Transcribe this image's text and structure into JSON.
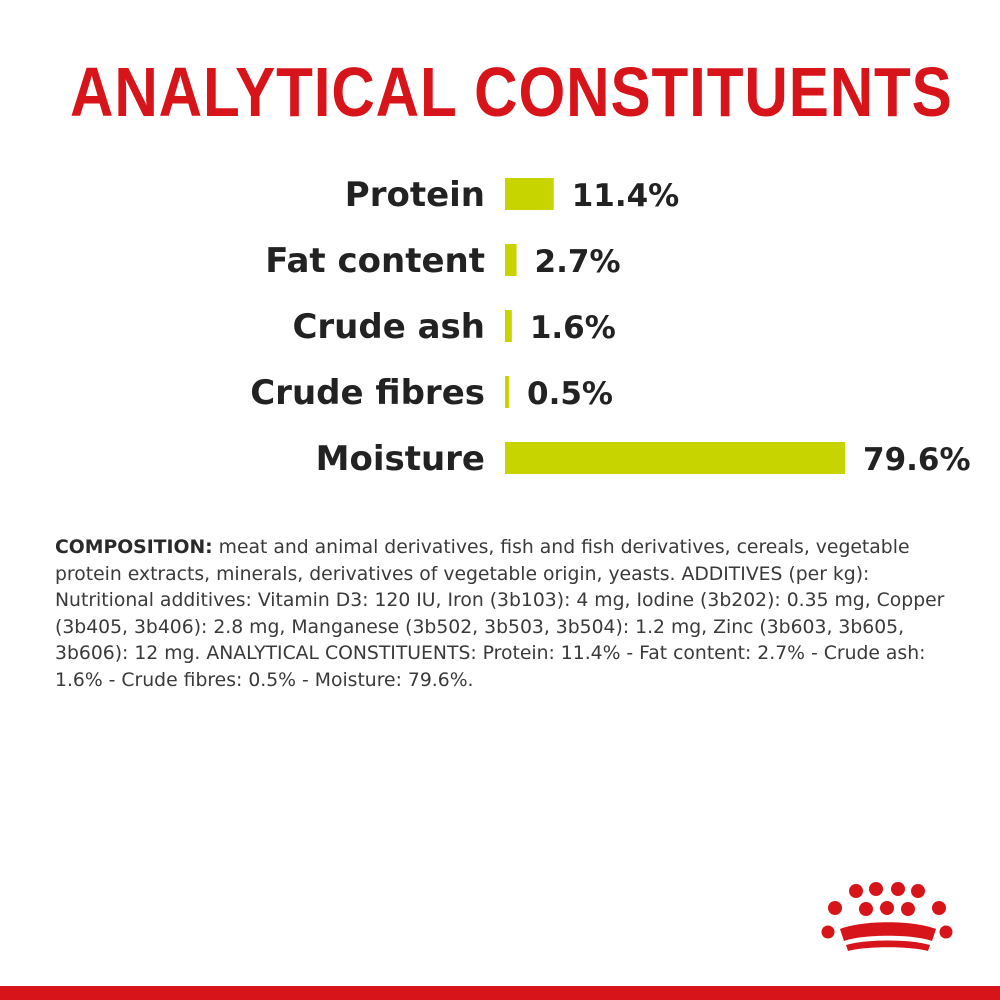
{
  "title": "ANALYTICAL CONSTITUENTS",
  "chart_data": {
    "type": "bar",
    "orientation": "horizontal",
    "categories": [
      "Protein",
      "Fat content",
      "Crude ash",
      "Crude fibres",
      "Moisture"
    ],
    "values": [
      11.4,
      2.7,
      1.6,
      0.5,
      79.6
    ],
    "value_labels": [
      "11.4%",
      "2.7%",
      "1.6%",
      "0.5%",
      "79.6%"
    ],
    "unit": "%",
    "xlim": [
      0,
      79.6
    ],
    "grid": false,
    "bar_color": "#c8d400",
    "label_color": "#222222"
  },
  "composition": {
    "heading": "COMPOSITION:",
    "text": " meat and animal derivatives, fish and fish derivatives, cereals, vegetable protein extracts, minerals, derivatives of vegetable origin, yeasts. ADDITIVES (per kg): Nutritional additives: Vitamin D3: 120 IU, Iron (3b103): 4 mg, Iodine (3b202): 0.35 mg, Copper (3b405, 3b406): 2.8 mg, Manganese (3b502, 3b503, 3b504): 1.2 mg, Zinc (3b603, 3b605, 3b606): 12 mg. ANALYTICAL CONSTITUENTS: Protein: 11.4% - Fat content: 2.7% - Crude ash: 1.6% - Crude fibres: 0.5% - Moisture: 79.6%."
  },
  "logo": {
    "icon": "crown-logo-icon"
  },
  "colors": {
    "brand_red": "#d8141b",
    "bar": "#c8d400",
    "text": "#222222"
  }
}
